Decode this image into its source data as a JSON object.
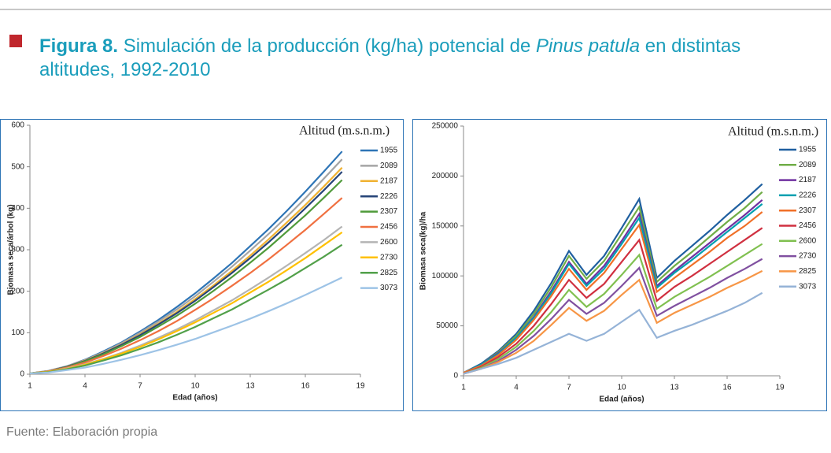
{
  "figure": {
    "label": "Figura 8.",
    "title_pre": " Simulación de la producción (kg/ha) potencial de ",
    "title_italic": "Pinus patula",
    "title_post": " en distintas altitudes, 1992-2010"
  },
  "source": "Fuente: Elaboración propia",
  "chart_data": [
    {
      "type": "line",
      "legend_title": "Altitud (m.s.n.m.)",
      "xlabel": "Edad (años)",
      "ylabel": "Biomasa seca/árbol (kg)",
      "x": [
        1,
        2,
        3,
        4,
        5,
        6,
        7,
        8,
        9,
        10,
        11,
        12,
        13,
        14,
        15,
        16,
        17,
        18
      ],
      "xlim": [
        1,
        19
      ],
      "xticks": [
        1,
        4,
        7,
        10,
        13,
        16,
        19
      ],
      "ylim": [
        0,
        600
      ],
      "yticks": [
        0,
        100,
        200,
        300,
        400,
        500,
        600
      ],
      "series": [
        {
          "name": "1955",
          "color": "#2e75b6",
          "values": [
            2,
            8,
            19,
            35,
            55,
            77,
            103,
            131,
            162,
            195,
            231,
            268,
            309,
            350,
            394,
            440,
            488,
            537
          ]
        },
        {
          "name": "2089",
          "color": "#a5a5a5",
          "values": [
            2,
            8,
            19,
            34,
            53,
            75,
            100,
            127,
            156,
            188,
            223,
            259,
            298,
            338,
            380,
            424,
            471,
            518
          ]
        },
        {
          "name": "2187",
          "color": "#f0b232",
          "values": [
            2,
            7,
            18,
            33,
            51,
            72,
            96,
            122,
            150,
            181,
            214,
            249,
            286,
            325,
            366,
            408,
            452,
            498
          ]
        },
        {
          "name": "2226",
          "color": "#264478",
          "values": [
            2,
            7,
            18,
            32,
            50,
            71,
            94,
            120,
            147,
            177,
            210,
            244,
            280,
            318,
            358,
            400,
            443,
            488
          ]
        },
        {
          "name": "2307",
          "color": "#4f9a3a",
          "values": [
            2,
            7,
            17,
            31,
            48,
            68,
            90,
            115,
            141,
            170,
            201,
            234,
            269,
            305,
            344,
            383,
            425,
            468
          ]
        },
        {
          "name": "2456",
          "color": "#f07040",
          "values": [
            2,
            7,
            16,
            28,
            44,
            62,
            82,
            104,
            128,
            155,
            183,
            213,
            244,
            277,
            312,
            348,
            386,
            425
          ]
        },
        {
          "name": "2600",
          "color": "#b4b4b4",
          "values": [
            2,
            6,
            14,
            24,
            37,
            52,
            69,
            88,
            108,
            130,
            154,
            178,
            205,
            233,
            262,
            292,
            323,
            356
          ]
        },
        {
          "name": "2730",
          "color": "#ffc000",
          "values": [
            2,
            6,
            13,
            23,
            36,
            50,
            66,
            84,
            104,
            125,
            148,
            171,
            197,
            223,
            251,
            280,
            311,
            342
          ]
        },
        {
          "name": "2825",
          "color": "#52a04a",
          "values": [
            2,
            5,
            12,
            21,
            33,
            46,
            61,
            77,
            95,
            114,
            135,
            156,
            180,
            204,
            229,
            256,
            283,
            312
          ]
        },
        {
          "name": "3073",
          "color": "#9dc3e6",
          "values": [
            2,
            4,
            10,
            16,
            25,
            35,
            46,
            58,
            71,
            85,
            101,
            117,
            134,
            152,
            171,
            191,
            212,
            233
          ]
        }
      ]
    },
    {
      "type": "line",
      "legend_title": "Altitud (m.s.n.m.)",
      "xlabel": "Edad (años)",
      "ylabel": "Biomasa seca(kg)/ha",
      "x": [
        1,
        2,
        3,
        4,
        5,
        6,
        7,
        8,
        9,
        10,
        11,
        12,
        13,
        14,
        15,
        16,
        17,
        18
      ],
      "xlim": [
        1,
        19
      ],
      "xticks": [
        1,
        4,
        7,
        10,
        13,
        16,
        19
      ],
      "ylim": [
        0,
        250000
      ],
      "yticks": [
        0,
        50000,
        100000,
        150000,
        200000,
        250000
      ],
      "series": [
        {
          "name": "1955",
          "color": "#1f5fa0",
          "values": [
            3000,
            12000,
            25000,
            42000,
            65000,
            93000,
            125000,
            101000,
            120000,
            148000,
            177000,
            98000,
            115000,
            130000,
            145000,
            161000,
            176000,
            192000
          ]
        },
        {
          "name": "2089",
          "color": "#70ad47",
          "values": [
            3000,
            11000,
            24000,
            40000,
            62000,
            89000,
            120000,
            97000,
            115000,
            142000,
            169000,
            94000,
            110000,
            124000,
            139000,
            154000,
            168000,
            184000
          ]
        },
        {
          "name": "2187",
          "color": "#7030a0",
          "values": [
            3000,
            11000,
            23000,
            38000,
            59000,
            85000,
            114000,
            92000,
            110000,
            135000,
            162000,
            90000,
            105000,
            119000,
            133000,
            147000,
            161000,
            176000
          ]
        },
        {
          "name": "2226",
          "color": "#00a0b0",
          "values": [
            3000,
            11000,
            22000,
            38000,
            58000,
            83000,
            112000,
            90000,
            107000,
            132000,
            158000,
            88000,
            103000,
            116000,
            130000,
            144000,
            158000,
            172000
          ]
        },
        {
          "name": "2307",
          "color": "#f07028",
          "values": [
            3000,
            10000,
            21000,
            36000,
            56000,
            80000,
            107000,
            86000,
            103000,
            127000,
            151000,
            84000,
            98000,
            111000,
            124000,
            138000,
            150000,
            164000
          ]
        },
        {
          "name": "2456",
          "color": "#d03040",
          "values": [
            2000,
            9000,
            19000,
            32000,
            50000,
            72000,
            96000,
            78000,
            92000,
            114000,
            136000,
            75000,
            89000,
            100000,
            112000,
            124000,
            136000,
            148000
          ]
        },
        {
          "name": "2600",
          "color": "#80c050",
          "values": [
            2000,
            8000,
            17000,
            29000,
            45000,
            64000,
            86000,
            69000,
            82000,
            101000,
            121000,
            67000,
            79000,
            89000,
            99000,
            110000,
            121000,
            132000
          ]
        },
        {
          "name": "2730",
          "color": "#8050a0",
          "values": [
            2000,
            7000,
            15000,
            26000,
            40000,
            57000,
            76000,
            62000,
            73000,
            90000,
            108000,
            60000,
            70000,
            79000,
            88000,
            98000,
            107000,
            117000
          ]
        },
        {
          "name": "2825",
          "color": "#f79646",
          "values": [
            2000,
            7000,
            14000,
            23000,
            35000,
            51000,
            68000,
            55000,
            65000,
            81000,
            96000,
            53000,
            63000,
            71000,
            79000,
            88000,
            96000,
            105000
          ]
        },
        {
          "name": "3073",
          "color": "#95b3d7",
          "values": [
            2000,
            7000,
            12000,
            18000,
            26000,
            34000,
            42000,
            35000,
            42000,
            54000,
            66000,
            38000,
            45000,
            51000,
            58000,
            65000,
            73000,
            83000
          ]
        }
      ]
    }
  ]
}
